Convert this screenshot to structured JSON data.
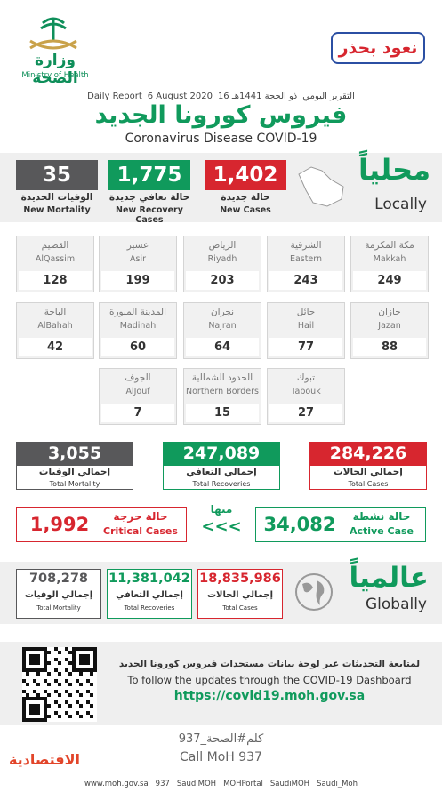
{
  "header": {
    "ministry_ar": "وزارة الصحة",
    "ministry_en": "Ministry of Health",
    "badge": "نعود بحذر"
  },
  "report": {
    "label_ar": "التقرير اليومي",
    "hijri": "16 ذو الحجة 1441هـ",
    "date": "6 August 2020",
    "label_en": "Daily Report",
    "title_ar": "فيروس كورونا الجديد",
    "title_en": "Coronavirus Disease COVID-19"
  },
  "local": {
    "label_ar": "محلياً",
    "label_en": "Locally",
    "stats": [
      {
        "value": "35",
        "label_ar": "الوفيات الجديدة",
        "label_en": "New Mortality"
      },
      {
        "value": "1,775",
        "label_ar": "حالة تعافي جديدة",
        "label_en": "New Recovery Cases"
      },
      {
        "value": "1,402",
        "label_ar": "حالة جديدة",
        "label_en": "New Cases"
      }
    ]
  },
  "regions": {
    "rows": [
      [
        {
          "ar": "مكة المكرمة",
          "en": "Makkah",
          "value": 249
        },
        {
          "ar": "الشرقية",
          "en": "Eastern",
          "value": 243
        },
        {
          "ar": "الرياض",
          "en": "Riyadh",
          "value": 203
        },
        {
          "ar": "عسير",
          "en": "Asir",
          "value": 199
        },
        {
          "ar": "القصيم",
          "en": "AlQassim",
          "value": 128
        }
      ],
      [
        {
          "ar": "جازان",
          "en": "Jazan",
          "value": 88
        },
        {
          "ar": "حائل",
          "en": "Hail",
          "value": 77
        },
        {
          "ar": "نجران",
          "en": "Najran",
          "value": 64
        },
        {
          "ar": "المدينة المنورة",
          "en": "Madinah",
          "value": 60
        },
        {
          "ar": "الباحة",
          "en": "AlBahah",
          "value": 42
        }
      ],
      [
        {
          "ar": "تبوك",
          "en": "Tabouk",
          "value": 27
        },
        {
          "ar": "الحدود الشمالية",
          "en": "Northern Borders",
          "value": 15
        },
        {
          "ar": "الجوف",
          "en": "AlJouf",
          "value": 7
        }
      ]
    ]
  },
  "totals": [
    {
      "value": "3,055",
      "label_ar": "إجمالي الوفيات",
      "label_en": "Total Mortality"
    },
    {
      "value": "247,089",
      "label_ar": "إجمالي التعافي",
      "label_en": "Total Recoveries"
    },
    {
      "value": "284,226",
      "label_ar": "إجمالي الحالات",
      "label_en": "Total Cases"
    }
  ],
  "cases": {
    "critical": {
      "value": "1,992",
      "label_ar": "حالة حرجة",
      "label_en": "Critical Cases"
    },
    "of_which": "منها",
    "arrows": "<<<",
    "active": {
      "value": "34,082",
      "label_ar": "حالة نشطة",
      "label_en": "Active Case"
    }
  },
  "global": {
    "label_ar": "عالمياً",
    "label_en": "Globally",
    "stats": [
      {
        "value": "708,278",
        "label_ar": "إجمالي الوفيات",
        "label_en": "Total Mortality"
      },
      {
        "value": "11,381,042",
        "label_ar": "إجمالي التعافي",
        "label_en": "Total Recoveries"
      },
      {
        "value": "18,835,986",
        "label_ar": "إجمالي الحالات",
        "label_en": "Total Cases"
      }
    ]
  },
  "dashboard": {
    "text_ar": "لمتابعة التحديثات عبر لوحة بيانات مستجدات فيروس كورونا الجديد",
    "text_en": "To follow the updates through the COVID-19 Dashboard",
    "url": "https://covid19.moh.gov.sa"
  },
  "call": {
    "ar": "كلم#الصحة_937",
    "en": "Call MoH 937"
  },
  "publisher": "الاقتصادية",
  "social": [
    "www.moh.gov.sa",
    "937",
    "SaudiMOH",
    "MOHPortal",
    "SaudiMOH",
    "Saudi_Moh"
  ]
}
